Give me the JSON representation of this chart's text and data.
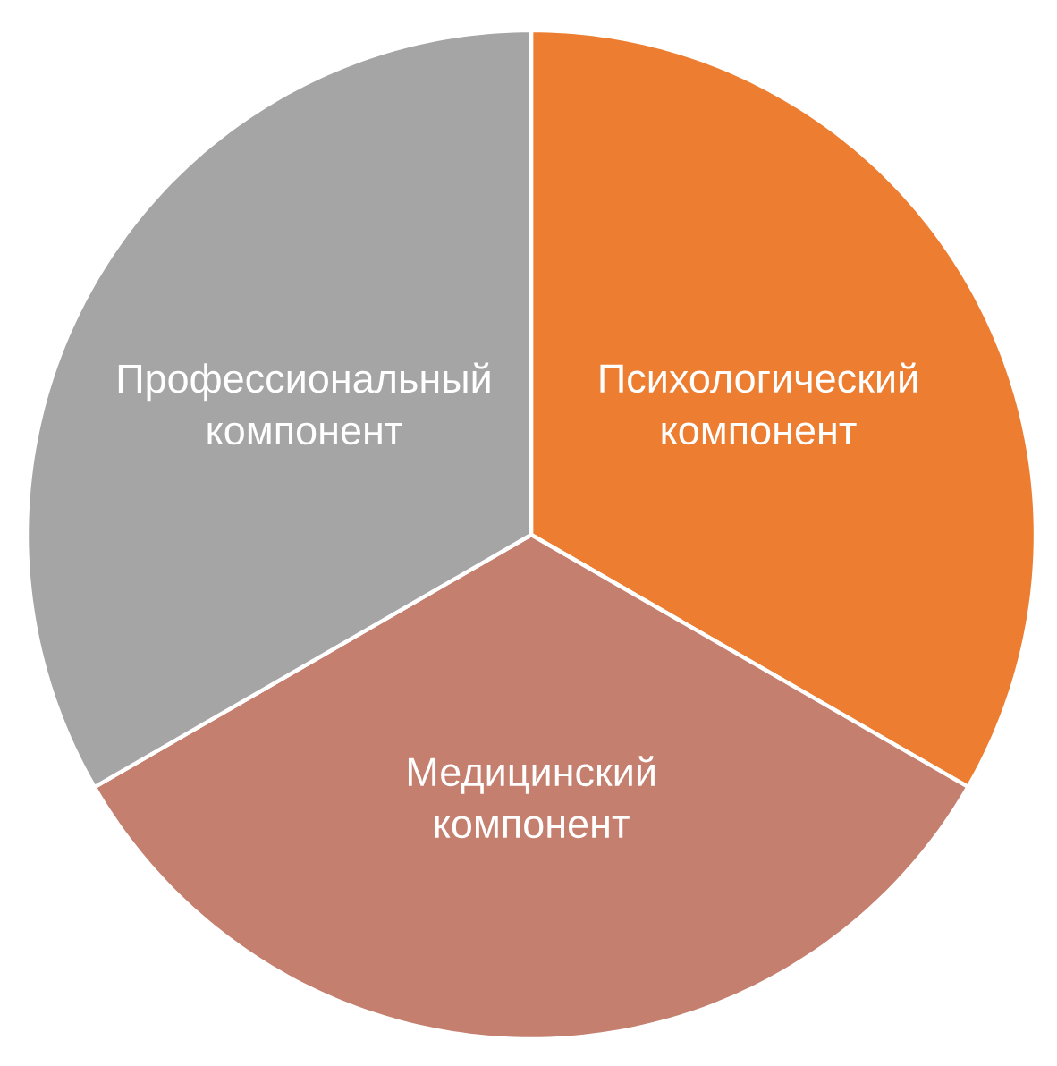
{
  "chart_data": {
    "type": "pie",
    "categories": [
      "Психологический компонент",
      "Медицинский компонент",
      "Профессиональный компонент"
    ],
    "values": [
      33.33,
      33.33,
      33.34
    ],
    "colors": [
      "#ED7D31",
      "#C47F6F",
      "#A5A5A5"
    ]
  }
}
